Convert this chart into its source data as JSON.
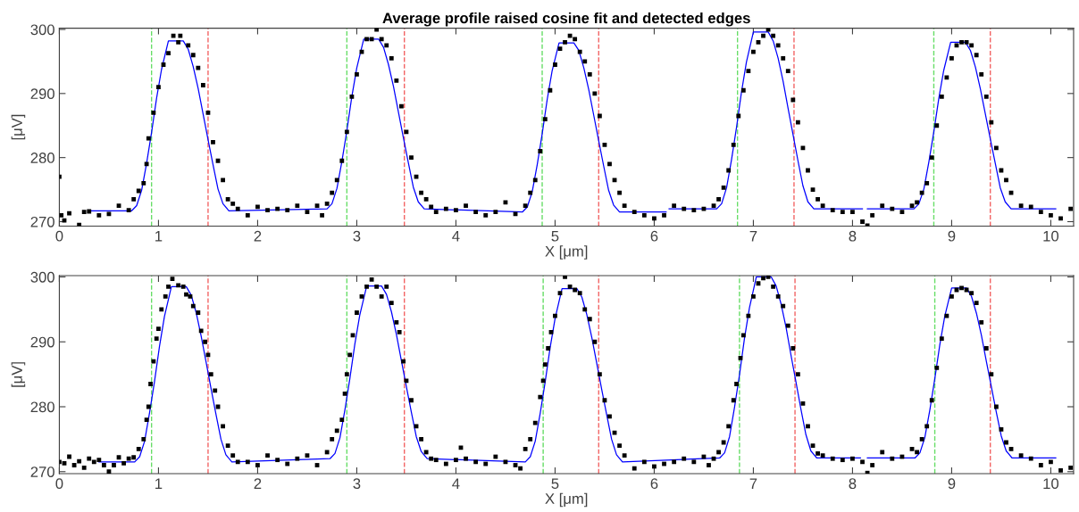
{
  "chart_data": [
    {
      "type": "scatter",
      "title": "Average profile raised cosine fit and detected edges",
      "xlabel": "X [μm]",
      "ylabel": "[μV]",
      "xlim": [
        0,
        10.23
      ],
      "ylim": [
        269.3,
        300.2
      ],
      "xticks": [
        0,
        1,
        2,
        3,
        4,
        5,
        6,
        7,
        8,
        9,
        10
      ],
      "yticks": [
        270,
        280,
        290,
        300
      ],
      "grid": false,
      "series": [
        {
          "marker": "square",
          "color": "#000000",
          "x": [
            0,
            0.02,
            0.05,
            0.1,
            0.2,
            0.25,
            0.3,
            0.4,
            0.5,
            0.6,
            0.7,
            0.75,
            0.8,
            0.85,
            0.88,
            0.9,
            0.95,
            1.0,
            1.05,
            1.1,
            1.15,
            1.2,
            1.22,
            1.3,
            1.35,
            1.4,
            1.45,
            1.5,
            1.55,
            1.6,
            1.65,
            1.7,
            1.75,
            1.8,
            1.9,
            2.0,
            2.1,
            2.2,
            2.3,
            2.4,
            2.5,
            2.6,
            2.65,
            2.7,
            2.75,
            2.8,
            2.85,
            2.9,
            2.95,
            3.0,
            3.05,
            3.1,
            3.15,
            3.2,
            3.25,
            3.3,
            3.35,
            3.4,
            3.45,
            3.5,
            3.55,
            3.6,
            3.65,
            3.7,
            3.75,
            3.8,
            3.9,
            4.0,
            4.1,
            4.2,
            4.3,
            4.4,
            4.5,
            4.6,
            4.7,
            4.75,
            4.8,
            4.85,
            4.9,
            4.95,
            5.0,
            5.05,
            5.1,
            5.15,
            5.2,
            5.25,
            5.3,
            5.35,
            5.4,
            5.45,
            5.5,
            5.55,
            5.6,
            5.65,
            5.7,
            5.8,
            5.9,
            6.0,
            6.1,
            6.2,
            6.3,
            6.4,
            6.5,
            6.6,
            6.65,
            6.7,
            6.75,
            6.8,
            6.85,
            6.9,
            6.95,
            7.0,
            7.05,
            7.1,
            7.15,
            7.2,
            7.25,
            7.3,
            7.35,
            7.4,
            7.45,
            7.5,
            7.55,
            7.6,
            7.65,
            7.7,
            7.8,
            7.9,
            8.0,
            8.1,
            8.15,
            8.2,
            8.3,
            8.4,
            8.5,
            8.6,
            8.65,
            8.7,
            8.75,
            8.8,
            8.85,
            8.9,
            8.95,
            9.0,
            9.05,
            9.1,
            9.15,
            9.2,
            9.25,
            9.3,
            9.35,
            9.4,
            9.45,
            9.5,
            9.55,
            9.6,
            9.7,
            9.8,
            9.9,
            10.0,
            10.1,
            10.2
          ],
          "values": [
            277,
            271,
            270.2,
            271.3,
            269.5,
            271.5,
            271.6,
            271,
            271.2,
            272.5,
            271.8,
            273.5,
            274.8,
            276,
            279,
            283,
            287,
            291,
            294.5,
            296.3,
            299,
            298,
            299,
            297.5,
            296,
            294,
            291.3,
            287,
            282.4,
            279.5,
            276.5,
            273.5,
            272.8,
            272,
            271,
            272.3,
            271.8,
            272,
            271.8,
            272.5,
            271.5,
            272.5,
            271,
            272.8,
            274.5,
            276.5,
            279.5,
            284,
            289.5,
            293,
            296.5,
            298.5,
            298.5,
            300,
            298.5,
            297.5,
            295.5,
            292,
            288,
            284,
            280,
            277,
            274.5,
            273.5,
            272.3,
            271.5,
            272,
            271.8,
            272.5,
            271.5,
            271,
            271.5,
            273,
            271.2,
            272.5,
            274.5,
            276.5,
            281,
            286,
            290.5,
            294.5,
            297,
            298,
            299,
            298.5,
            296.5,
            295,
            293,
            290,
            286.5,
            282,
            279,
            276.5,
            274.5,
            272.5,
            271.5,
            271,
            270.5,
            271,
            272.5,
            272,
            271.8,
            272,
            272.5,
            273.5,
            275.3,
            278,
            282,
            286.5,
            290.5,
            293.5,
            296.5,
            298,
            299,
            300,
            299,
            297.5,
            295.5,
            293.5,
            289,
            285.5,
            281.5,
            278,
            275,
            273.5,
            272.5,
            271.8,
            271.5,
            271.5,
            270,
            269.4,
            271,
            272.5,
            272,
            271.5,
            272.5,
            273,
            274.5,
            276,
            280,
            285,
            289.5,
            292.5,
            295.5,
            297.5,
            298,
            298,
            297.5,
            296,
            293,
            289.5,
            285.5,
            281.5,
            278,
            276.5,
            274.5,
            272.5,
            272.3,
            271.5,
            271,
            270.5,
            272
          ]
        },
        {
          "type": "line",
          "color": "#0000ff",
          "x": [
            0.3,
            0.73,
            0.78,
            0.83,
            0.88,
            0.93,
            0.98,
            1.03,
            1.1,
            1.25,
            1.3,
            1.35,
            1.4,
            1.45,
            1.5,
            1.55,
            1.6,
            1.65,
            1.71,
            2.7,
            2.75,
            2.8,
            2.85,
            2.9,
            2.95,
            3.0,
            3.07,
            3.22,
            3.27,
            3.32,
            3.37,
            3.42,
            3.47,
            3.52,
            3.57,
            3.62,
            3.68,
            4.67,
            4.72,
            4.77,
            4.82,
            4.87,
            4.92,
            4.97,
            5.04,
            5.19,
            5.24,
            5.29,
            5.34,
            5.39,
            5.44,
            5.49,
            5.54,
            5.59,
            5.65,
            6.12,
            6.13,
            6.15,
            6.63,
            6.68,
            6.73,
            6.78,
            6.83,
            6.88,
            6.93,
            7.0,
            7.15,
            7.2,
            7.25,
            7.3,
            7.35,
            7.4,
            7.45,
            7.5,
            7.55,
            7.61,
            8.1,
            8.12,
            8.15,
            8.62,
            8.67,
            8.72,
            8.77,
            8.82,
            8.87,
            8.92,
            8.99,
            9.14,
            9.19,
            9.24,
            9.29,
            9.34,
            9.39,
            9.44,
            9.49,
            9.54,
            9.6,
            10.05
          ],
          "values": [
            271.7,
            271.7,
            272.5,
            274.9,
            279.1,
            283.9,
            289.2,
            293.7,
            298.2,
            298.2,
            296.9,
            294.2,
            290.8,
            286.8,
            282.8,
            278.9,
            275.1,
            272.8,
            271.7,
            272.0,
            272.8,
            275.2,
            279.4,
            284.2,
            289.5,
            294.0,
            298.5,
            298.5,
            297.2,
            294.5,
            291.1,
            287.1,
            283.1,
            279.2,
            275.4,
            273.1,
            272.0,
            271.5,
            272.3,
            274.7,
            278.9,
            283.7,
            289.0,
            293.5,
            297.9,
            297.9,
            296.7,
            294.0,
            290.6,
            286.6,
            282.6,
            278.7,
            274.9,
            272.6,
            271.5,
            271.5,
            null,
            272.0,
            272.0,
            272.8,
            275.3,
            279.7,
            284.7,
            290.2,
            294.9,
            299.6,
            299.6,
            298.2,
            295.5,
            291.9,
            287.7,
            283.6,
            279.5,
            275.6,
            273.1,
            272.0,
            272.0,
            null,
            272.0,
            272.0,
            272.8,
            275.1,
            279.3,
            284.0,
            289.2,
            293.6,
            298.0,
            298.0,
            296.7,
            294.1,
            290.7,
            286.8,
            282.9,
            279.1,
            275.3,
            273.1,
            272.0,
            272.0
          ]
        }
      ],
      "ref_lines": [
        {
          "axis": "x",
          "value": 0.93,
          "color": "#66dd66",
          "line_style": "dashed"
        },
        {
          "axis": "x",
          "value": 2.9,
          "color": "#66dd66",
          "line_style": "dashed"
        },
        {
          "axis": "x",
          "value": 4.87,
          "color": "#66dd66",
          "line_style": "dashed"
        },
        {
          "axis": "x",
          "value": 6.84,
          "color": "#66dd66",
          "line_style": "dashed"
        },
        {
          "axis": "x",
          "value": 8.82,
          "color": "#66dd66",
          "line_style": "dashed"
        },
        {
          "axis": "x",
          "value": 1.5,
          "color": "#f26464",
          "line_style": "dashed"
        },
        {
          "axis": "x",
          "value": 3.48,
          "color": "#f26464",
          "line_style": "dashed"
        },
        {
          "axis": "x",
          "value": 5.44,
          "color": "#f26464",
          "line_style": "dashed"
        },
        {
          "axis": "x",
          "value": 7.41,
          "color": "#f26464",
          "line_style": "dashed"
        },
        {
          "axis": "x",
          "value": 9.39,
          "color": "#f26464",
          "line_style": "dashed"
        }
      ]
    },
    {
      "type": "scatter",
      "xlabel": "X [μm]",
      "ylabel": "[μV]",
      "xlim": [
        0,
        10.23
      ],
      "ylim": [
        269.7,
        300.2
      ],
      "xticks": [
        0,
        1,
        2,
        3,
        4,
        5,
        6,
        7,
        8,
        9,
        10
      ],
      "yticks": [
        270,
        280,
        290,
        300
      ],
      "grid": false,
      "series": [
        {
          "marker": "square",
          "color": "#000000",
          "x": [
            0,
            0.05,
            0.1,
            0.15,
            0.2,
            0.25,
            0.3,
            0.35,
            0.4,
            0.45,
            0.5,
            0.55,
            0.6,
            0.65,
            0.7,
            0.75,
            0.8,
            0.85,
            0.88,
            0.9,
            0.92,
            0.95,
            0.98,
            1.0,
            1.03,
            1.07,
            1.1,
            1.14,
            1.2,
            1.25,
            1.28,
            1.32,
            1.35,
            1.4,
            1.43,
            1.47,
            1.5,
            1.53,
            1.57,
            1.6,
            1.65,
            1.7,
            1.75,
            1.8,
            1.9,
            2.0,
            2.1,
            2.2,
            2.3,
            2.4,
            2.5,
            2.6,
            2.7,
            2.75,
            2.8,
            2.85,
            2.88,
            2.9,
            2.93,
            2.96,
            3.0,
            3.05,
            3.1,
            3.15,
            3.2,
            3.25,
            3.3,
            3.35,
            3.4,
            3.43,
            3.47,
            3.5,
            3.55,
            3.6,
            3.65,
            3.7,
            3.75,
            3.8,
            3.9,
            4.0,
            4.05,
            4.1,
            4.2,
            4.3,
            4.4,
            4.5,
            4.6,
            4.65,
            4.7,
            4.75,
            4.8,
            4.85,
            4.88,
            4.9,
            4.93,
            4.96,
            5.0,
            5.05,
            5.1,
            5.15,
            5.2,
            5.25,
            5.3,
            5.35,
            5.4,
            5.45,
            5.5,
            5.55,
            5.6,
            5.65,
            5.7,
            5.8,
            5.9,
            6.0,
            6.1,
            6.2,
            6.3,
            6.4,
            6.5,
            6.55,
            6.6,
            6.65,
            6.7,
            6.75,
            6.8,
            6.83,
            6.87,
            6.9,
            6.95,
            7.0,
            7.05,
            7.1,
            7.15,
            7.2,
            7.25,
            7.3,
            7.35,
            7.4,
            7.45,
            7.5,
            7.55,
            7.6,
            7.65,
            7.7,
            7.8,
            7.9,
            8.0,
            8.1,
            8.15,
            8.2,
            8.3,
            8.4,
            8.5,
            8.6,
            8.65,
            8.7,
            8.75,
            8.8,
            8.85,
            8.9,
            8.95,
            9.0,
            9.05,
            9.1,
            9.15,
            9.2,
            9.25,
            9.3,
            9.35,
            9.4,
            9.45,
            9.5,
            9.55,
            9.6,
            9.7,
            9.8,
            9.9,
            10.0,
            10.1,
            10.2
          ],
          "values": [
            271.5,
            271.3,
            272.3,
            271,
            271.6,
            270.6,
            272,
            271.5,
            271.8,
            271,
            270,
            271,
            272.2,
            271.3,
            272,
            272.2,
            273.5,
            275,
            278,
            280,
            283.5,
            287,
            290.5,
            292,
            295,
            297,
            298.5,
            299.7,
            298.7,
            298.5,
            297.3,
            297,
            295.5,
            294.5,
            291.7,
            290,
            288,
            285,
            282.5,
            280,
            277,
            274,
            272.5,
            271.5,
            271.5,
            271,
            272.5,
            271.8,
            271.2,
            272,
            272.5,
            271,
            273,
            275,
            276.3,
            278,
            282,
            285,
            288,
            291,
            294.5,
            297,
            298.5,
            299.6,
            298.5,
            297,
            298.5,
            296,
            293,
            291.5,
            287,
            284,
            281,
            277,
            275,
            273,
            272,
            271.8,
            271.2,
            271.8,
            273.7,
            272,
            271.5,
            271.2,
            272.3,
            271.5,
            271,
            270.5,
            273.5,
            275,
            277.5,
            281.5,
            284,
            286.5,
            289,
            291.5,
            294,
            297.5,
            300,
            298.5,
            298,
            297.5,
            295,
            293.5,
            290,
            285,
            281,
            278.5,
            276,
            274,
            272.5,
            270.5,
            271.5,
            270.8,
            271.2,
            271.5,
            272,
            271.5,
            272.3,
            271,
            272,
            273,
            274.5,
            277,
            281,
            283.5,
            287.5,
            291,
            294,
            297,
            299,
            299.8,
            300,
            298.5,
            297,
            295.5,
            292.5,
            289,
            285,
            280.5,
            277,
            274,
            272.8,
            272.5,
            272,
            271.8,
            272,
            271.5,
            269.8,
            271,
            273,
            272,
            272.3,
            273.5,
            273,
            275,
            277,
            281,
            286,
            290.5,
            294,
            297,
            298,
            298.3,
            298,
            297.5,
            296,
            293,
            289,
            285,
            280,
            276.5,
            274.5,
            273.5,
            272.5,
            272,
            271,
            271.5,
            270.2,
            270.6
          ]
        },
        {
          "type": "line",
          "color": "#0000ff",
          "x": [
            0.4,
            0.76,
            0.81,
            0.86,
            0.91,
            0.96,
            1.01,
            1.06,
            1.13,
            1.28,
            1.33,
            1.38,
            1.43,
            1.48,
            1.53,
            1.58,
            1.63,
            1.68,
            1.74,
            2.73,
            2.78,
            2.83,
            2.88,
            2.93,
            2.98,
            3.03,
            3.1,
            3.25,
            3.3,
            3.35,
            3.4,
            3.45,
            3.5,
            3.55,
            3.6,
            3.65,
            3.71,
            4.7,
            4.75,
            4.8,
            4.85,
            4.9,
            4.95,
            5.0,
            5.07,
            5.22,
            5.27,
            5.32,
            5.37,
            5.42,
            5.47,
            5.52,
            5.57,
            5.62,
            5.68,
            6.66,
            6.71,
            6.76,
            6.81,
            6.86,
            6.91,
            6.96,
            7.03,
            7.18,
            7.23,
            7.28,
            7.33,
            7.38,
            7.43,
            7.48,
            7.53,
            7.58,
            7.64,
            8.08,
            8.11,
            8.15,
            8.63,
            8.68,
            8.73,
            8.78,
            8.83,
            8.88,
            8.93,
            9.0,
            9.15,
            9.2,
            9.25,
            9.3,
            9.35,
            9.4,
            9.45,
            9.5,
            9.55,
            9.61,
            10.05
          ],
          "values": [
            271.5,
            271.5,
            272.3,
            274.7,
            279.1,
            283.9,
            289.3,
            293.9,
            298.5,
            298.5,
            297.2,
            294.5,
            290.9,
            286.9,
            282.8,
            278.8,
            275.0,
            272.6,
            271.5,
            272.0,
            272.8,
            275.2,
            279.5,
            284.3,
            289.6,
            294.1,
            298.6,
            298.6,
            297.3,
            294.6,
            291.1,
            287.1,
            283.1,
            279.2,
            275.4,
            273.1,
            272.0,
            271.5,
            272.3,
            274.7,
            279.0,
            283.8,
            289.1,
            293.6,
            298.2,
            298.2,
            296.9,
            294.2,
            290.7,
            286.7,
            282.7,
            278.8,
            275.0,
            272.6,
            271.5,
            272.1,
            272.9,
            275.4,
            279.9,
            284.9,
            290.5,
            295.2,
            300.0,
            300.0,
            298.6,
            295.8,
            292.2,
            287.9,
            283.8,
            279.6,
            275.7,
            273.2,
            272.1,
            272.1,
            null,
            272.1,
            272.1,
            272.9,
            275.3,
            279.5,
            284.3,
            289.5,
            293.9,
            298.3,
            298.3,
            297.0,
            294.4,
            291.0,
            287.0,
            283.1,
            279.2,
            275.5,
            273.2,
            272.1,
            272.1
          ]
        }
      ],
      "ref_lines": [
        {
          "axis": "x",
          "value": 0.93,
          "color": "#66dd66",
          "line_style": "dashed"
        },
        {
          "axis": "x",
          "value": 2.9,
          "color": "#66dd66",
          "line_style": "dashed"
        },
        {
          "axis": "x",
          "value": 4.88,
          "color": "#66dd66",
          "line_style": "dashed"
        },
        {
          "axis": "x",
          "value": 6.86,
          "color": "#66dd66",
          "line_style": "dashed"
        },
        {
          "axis": "x",
          "value": 8.83,
          "color": "#66dd66",
          "line_style": "dashed"
        },
        {
          "axis": "x",
          "value": 1.5,
          "color": "#f26464",
          "line_style": "dashed"
        },
        {
          "axis": "x",
          "value": 3.48,
          "color": "#f26464",
          "line_style": "dashed"
        },
        {
          "axis": "x",
          "value": 5.44,
          "color": "#f26464",
          "line_style": "dashed"
        },
        {
          "axis": "x",
          "value": 7.42,
          "color": "#f26464",
          "line_style": "dashed"
        },
        {
          "axis": "x",
          "value": 9.39,
          "color": "#f26464",
          "line_style": "dashed"
        }
      ]
    }
  ]
}
